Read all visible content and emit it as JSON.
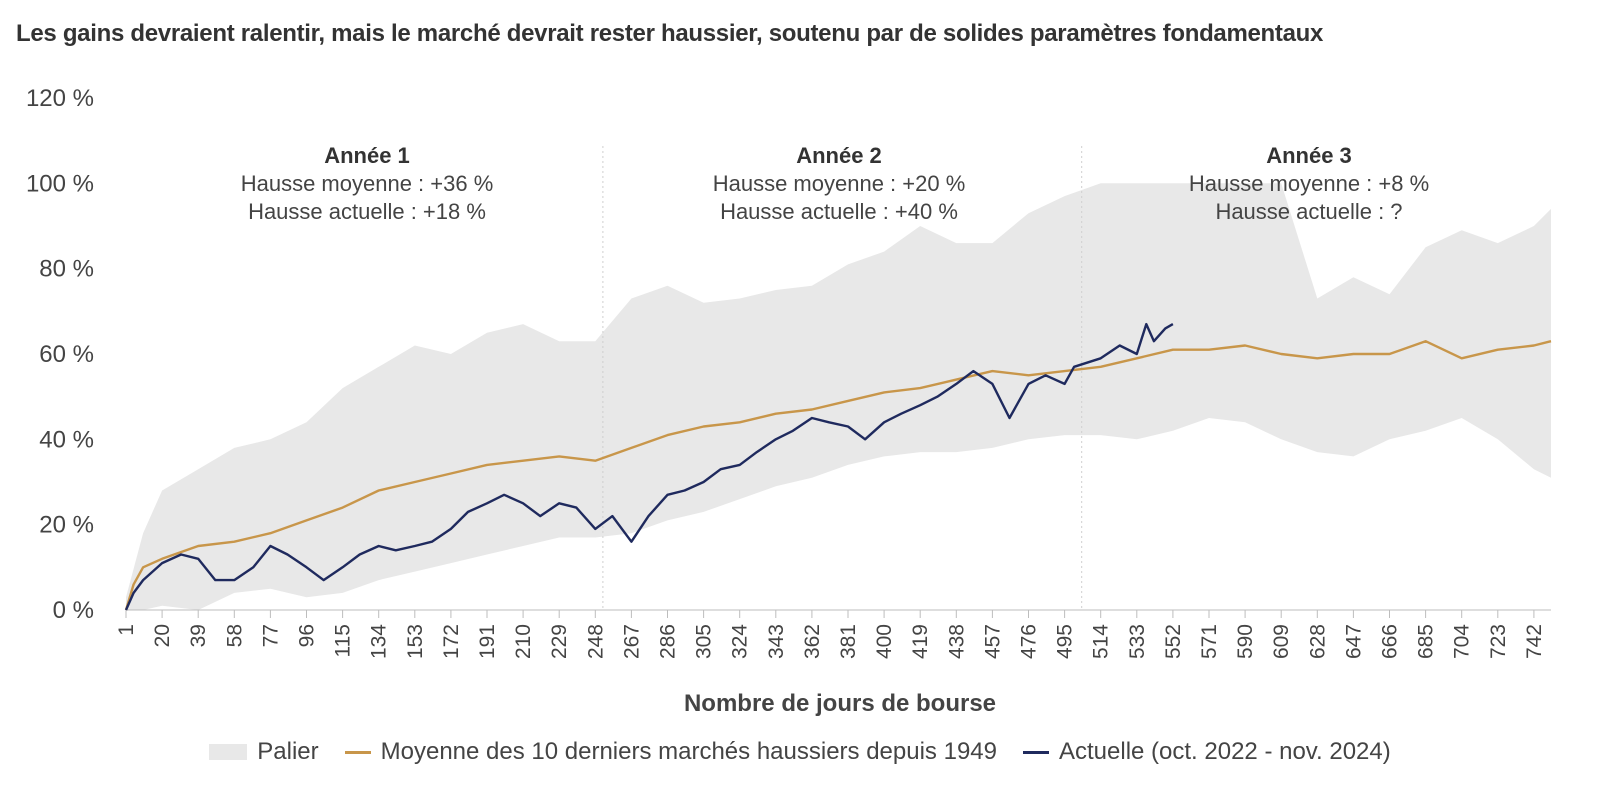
{
  "title": "Les gains devraient ralentir, mais le marché devrait rester haussier, soutenu par de solides paramètres fondamentaux",
  "colors": {
    "band": "#e8e8e8",
    "average": "#c8964a",
    "current": "#1f2a5e"
  },
  "legend": {
    "band": "Palier",
    "average": "Moyenne des 10 derniers marchés haussiers depuis 1949",
    "current": "Actuelle (oct. 2022 - nov. 2024)"
  },
  "annotations": [
    {
      "title": "Année 1",
      "line1": "Hausse moyenne : +36 %",
      "line2": "Hausse actuelle : +18 %"
    },
    {
      "title": "Année 2",
      "line1": "Hausse moyenne : +20 %",
      "line2": "Hausse actuelle : +40 %"
    },
    {
      "title": "Année 3",
      "line1": "Hausse moyenne : +8 %",
      "line2": "Hausse actuelle : ?"
    }
  ],
  "chart_data": {
    "type": "line",
    "xlabel": "Nombre de jours de bourse",
    "ylabel": "",
    "xlim": [
      1,
      751
    ],
    "ylim": [
      0,
      120
    ],
    "yticks": [
      0,
      20,
      40,
      60,
      80,
      100,
      120
    ],
    "ytick_labels": [
      "0 %",
      "20 %",
      "40 %",
      "60 %",
      "80 %",
      "100 %",
      "120 %"
    ],
    "xticks": [
      1,
      20,
      39,
      58,
      77,
      96,
      115,
      134,
      153,
      172,
      191,
      210,
      229,
      248,
      267,
      286,
      305,
      324,
      343,
      362,
      381,
      400,
      419,
      438,
      457,
      476,
      495,
      514,
      533,
      552,
      571,
      590,
      609,
      628,
      647,
      666,
      685,
      704,
      723,
      742
    ],
    "year_dividers": [
      252,
      504
    ],
    "grid": false,
    "legend_position": "bottom",
    "band": {
      "name": "Palier",
      "x": [
        1,
        10,
        20,
        39,
        58,
        77,
        96,
        115,
        134,
        153,
        172,
        191,
        210,
        229,
        248,
        267,
        286,
        305,
        324,
        343,
        362,
        381,
        400,
        419,
        438,
        457,
        476,
        495,
        514,
        533,
        552,
        571,
        590,
        609,
        628,
        647,
        666,
        685,
        704,
        723,
        742,
        751
      ],
      "lower": [
        0,
        0,
        1,
        0,
        4,
        5,
        3,
        4,
        7,
        9,
        11,
        13,
        15,
        17,
        17,
        18,
        21,
        23,
        26,
        29,
        31,
        34,
        36,
        37,
        37,
        38,
        40,
        41,
        41,
        40,
        42,
        45,
        44,
        40,
        37,
        36,
        40,
        42,
        45,
        40,
        33,
        31
      ],
      "upper": [
        3,
        18,
        28,
        33,
        38,
        40,
        44,
        52,
        57,
        62,
        60,
        65,
        67,
        63,
        63,
        73,
        76,
        72,
        73,
        75,
        76,
        81,
        84,
        90,
        86,
        86,
        93,
        97,
        100,
        100,
        100,
        100,
        100,
        100,
        73,
        78,
        74,
        85,
        89,
        86,
        90,
        94
      ]
    },
    "series": [
      {
        "name": "Moyenne des 10 derniers marchés haussiers depuis 1949",
        "x": [
          1,
          5,
          10,
          20,
          39,
          58,
          77,
          96,
          115,
          134,
          153,
          172,
          191,
          210,
          229,
          248,
          267,
          286,
          305,
          324,
          343,
          362,
          381,
          400,
          419,
          438,
          457,
          476,
          495,
          514,
          533,
          552,
          571,
          590,
          609,
          628,
          647,
          666,
          685,
          704,
          723,
          742,
          751
        ],
        "values": [
          0,
          6,
          10,
          12,
          15,
          16,
          18,
          21,
          24,
          28,
          30,
          32,
          34,
          35,
          36,
          35,
          38,
          41,
          43,
          44,
          46,
          47,
          49,
          51,
          52,
          54,
          56,
          55,
          56,
          57,
          59,
          61,
          61,
          62,
          60,
          59,
          60,
          60,
          63,
          59,
          61,
          62,
          63
        ]
      },
      {
        "name": "Actuelle (oct. 2022 - nov. 2024)",
        "x": [
          1,
          5,
          10,
          20,
          30,
          39,
          48,
          58,
          68,
          77,
          86,
          96,
          105,
          115,
          124,
          134,
          143,
          153,
          162,
          172,
          181,
          191,
          200,
          210,
          219,
          229,
          238,
          248,
          257,
          267,
          276,
          286,
          295,
          305,
          314,
          324,
          333,
          343,
          352,
          362,
          371,
          381,
          390,
          400,
          409,
          419,
          428,
          438,
          447,
          457,
          466,
          476,
          485,
          495,
          500,
          514,
          524,
          533,
          538,
          542,
          548,
          552
        ],
        "values": [
          0,
          4,
          7,
          11,
          13,
          12,
          7,
          7,
          10,
          15,
          13,
          10,
          7,
          10,
          13,
          15,
          14,
          15,
          16,
          19,
          23,
          25,
          27,
          25,
          22,
          25,
          24,
          19,
          22,
          16,
          22,
          27,
          28,
          30,
          33,
          34,
          37,
          40,
          42,
          45,
          44,
          43,
          40,
          44,
          46,
          48,
          50,
          53,
          56,
          53,
          45,
          53,
          55,
          53,
          57,
          59,
          62,
          60,
          67,
          63,
          66,
          67
        ]
      }
    ]
  }
}
